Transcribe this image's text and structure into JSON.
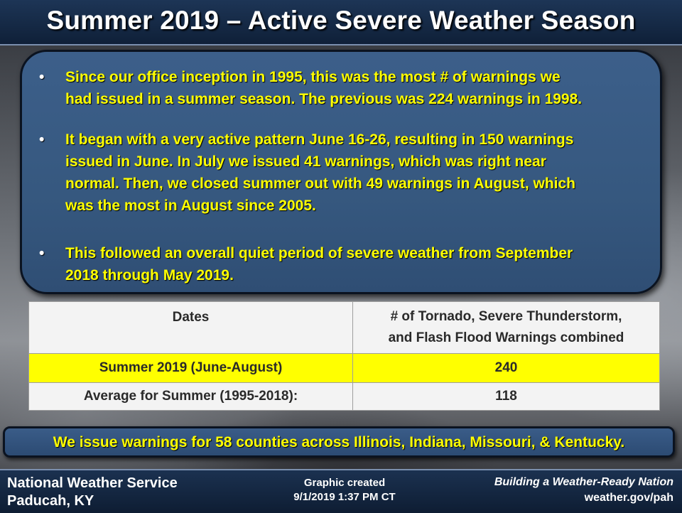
{
  "header": {
    "title": "Summer 2019 – Active Severe Weather Season"
  },
  "bullets": [
    {
      "line1": "Since our office inception in 1995, this was the most # of warnings we",
      "line2": "had issued in a summer season. The previous was 224 warnings in 1998."
    },
    {
      "line1": "It began with a very active pattern June 16-26, resulting in 150 warnings",
      "line2": "issued in June. In July we issued 41 warnings, which was right near",
      "line3": "normal. Then, we closed summer out with 49 warnings in August, which",
      "line4": "was the most in August since 2005."
    },
    {
      "line1": "This followed an overall quiet period of severe weather from September",
      "line2": "2018 through May 2019."
    }
  ],
  "bullet_symbol": "•",
  "table": {
    "header": {
      "dates": "Dates",
      "count_line1": "# of Tornado, Severe Thunderstorm,",
      "count_line2": "and Flash Flood Warnings combined"
    },
    "rows": [
      {
        "label": "Summer 2019 (June-August)",
        "value": "240",
        "highlight_color": "#ffff00"
      },
      {
        "label": "Average for Summer (1995-2018):",
        "value": "118"
      }
    ]
  },
  "counties_note": "We issue warnings for 58 counties across Illinois, Indiana, Missouri, & Kentucky.",
  "footer": {
    "office_line1": "National Weather Service",
    "office_line2": "Paducah, KY",
    "created_line1": "Graphic created",
    "created_line2": "9/1/2019 1:37 PM CT",
    "slogan": "Building a Weather-Ready Nation",
    "website": "weather.gov/pah"
  },
  "colors": {
    "accent_text": "#ffff00",
    "panel_blue": "#36587f",
    "title_bar": "#1d3556"
  }
}
